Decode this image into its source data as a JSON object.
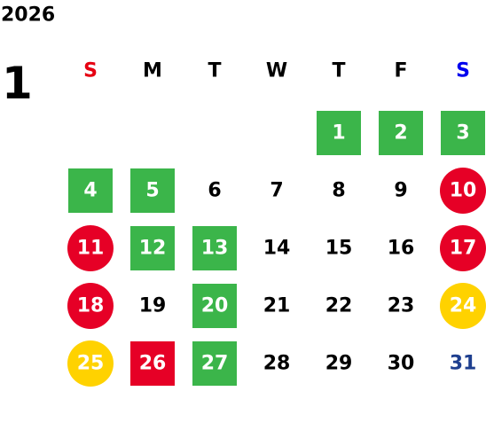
{
  "year": "2026",
  "month": "1",
  "weekdays": [
    {
      "label": "S",
      "color": "#e60012"
    },
    {
      "label": "M",
      "color": "#000000"
    },
    {
      "label": "T",
      "color": "#000000"
    },
    {
      "label": "W",
      "color": "#000000"
    },
    {
      "label": "T",
      "color": "#000000"
    },
    {
      "label": "F",
      "color": "#000000"
    },
    {
      "label": "S",
      "color": "#0000ee"
    }
  ],
  "mark_styles": {
    "green-square": {
      "shape": "square",
      "color": "#3bb54a"
    },
    "red-square": {
      "shape": "square",
      "color": "#e60026"
    },
    "red-circle": {
      "shape": "circle",
      "color": "#e60026"
    },
    "yellow-circle": {
      "shape": "circle",
      "color": "#ffd200"
    }
  },
  "weeks": [
    [
      null,
      null,
      null,
      null,
      {
        "day": 1,
        "mark": "green-square"
      },
      {
        "day": 2,
        "mark": "green-square"
      },
      {
        "day": 3,
        "mark": "green-square"
      }
    ],
    [
      {
        "day": 4,
        "mark": "green-square"
      },
      {
        "day": 5,
        "mark": "green-square"
      },
      {
        "day": 6
      },
      {
        "day": 7
      },
      {
        "day": 8
      },
      {
        "day": 9
      },
      {
        "day": 10,
        "mark": "red-circle"
      }
    ],
    [
      {
        "day": 11,
        "mark": "red-circle"
      },
      {
        "day": 12,
        "mark": "green-square"
      },
      {
        "day": 13,
        "mark": "green-square"
      },
      {
        "day": 14
      },
      {
        "day": 15
      },
      {
        "day": 16
      },
      {
        "day": 17,
        "mark": "red-circle"
      }
    ],
    [
      {
        "day": 18,
        "mark": "red-circle"
      },
      {
        "day": 19
      },
      {
        "day": 20,
        "mark": "green-square"
      },
      {
        "day": 21
      },
      {
        "day": 22
      },
      {
        "day": 23
      },
      {
        "day": 24,
        "mark": "yellow-circle"
      }
    ],
    [
      {
        "day": 25,
        "mark": "yellow-circle"
      },
      {
        "day": 26,
        "mark": "red-square"
      },
      {
        "day": 27,
        "mark": "green-square"
      },
      {
        "day": 28
      },
      {
        "day": 29
      },
      {
        "day": 30
      },
      {
        "day": 31,
        "text_color": "#1e3f8f"
      }
    ]
  ]
}
